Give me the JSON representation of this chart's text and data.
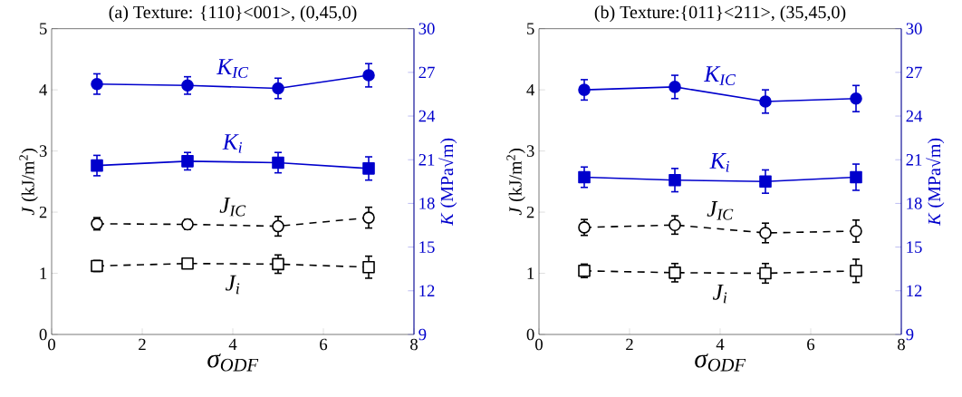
{
  "chart_data": [
    {
      "type": "line",
      "title": "(a) Texture: {110}<001>, (0,45,0)",
      "xlabel": "σ$_{ODF}$",
      "ylabel": "*J* (kJ/m$^{2}$)",
      "y2label": "*K* (MPa√m)",
      "x": [
        1,
        3,
        5,
        7
      ],
      "xlim": [
        0,
        8
      ],
      "xticks": [
        0,
        2,
        4,
        6,
        8
      ],
      "ylim": [
        0,
        5
      ],
      "yticks": [
        0,
        1,
        2,
        3,
        4,
        5
      ],
      "y2lim": [
        9,
        30
      ],
      "y2ticks": [
        9,
        12,
        15,
        18,
        21,
        24,
        27,
        30
      ],
      "series": [
        {
          "name": "K$_{IC}$",
          "color": "#0000cc",
          "axis": "y2",
          "marker": "circle",
          "line_style": "solid",
          "values": [
            26.2,
            26.1,
            25.9,
            26.8
          ],
          "errors": [
            0.7,
            0.6,
            0.7,
            0.8
          ]
        },
        {
          "name": "K$_{i}$",
          "color": "#0000cc",
          "axis": "y2",
          "marker": "square",
          "line_style": "solid",
          "values": [
            20.6,
            20.9,
            20.8,
            20.4
          ],
          "errors": [
            0.7,
            0.6,
            0.7,
            0.8
          ]
        },
        {
          "name": "J$_{IC}$",
          "color": "#000000",
          "axis": "y",
          "marker": "circle",
          "line_style": "dashed",
          "values": [
            1.81,
            1.8,
            1.77,
            1.91
          ],
          "errors": [
            0.1,
            0.08,
            0.16,
            0.17
          ]
        },
        {
          "name": "J$_{i}$",
          "color": "#000000",
          "axis": "y",
          "marker": "square",
          "line_style": "dashed",
          "values": [
            1.12,
            1.16,
            1.15,
            1.1
          ],
          "errors": [
            0.09,
            0.06,
            0.15,
            0.18
          ]
        }
      ]
    },
    {
      "type": "line",
      "title": "(b) Texture:{011}<211>, (35,45,0)",
      "xlabel": "σ$_{ODF}$",
      "ylabel": "*J* (kJ/m$^{2}$)",
      "y2label": "*K* (MPa√m)",
      "x": [
        1,
        3,
        5,
        7
      ],
      "xlim": [
        0,
        8
      ],
      "xticks": [
        0,
        2,
        4,
        6,
        8
      ],
      "ylim": [
        0,
        5
      ],
      "yticks": [
        0,
        1,
        2,
        3,
        4,
        5
      ],
      "y2lim": [
        9,
        30
      ],
      "y2ticks": [
        9,
        12,
        15,
        18,
        21,
        24,
        27,
        30
      ],
      "series": [
        {
          "name": "K$_{IC}$",
          "color": "#0000cc",
          "axis": "y2",
          "marker": "circle",
          "line_style": "solid",
          "values": [
            25.8,
            26.0,
            25.0,
            25.2
          ],
          "errors": [
            0.7,
            0.8,
            0.8,
            0.9
          ]
        },
        {
          "name": "K$_{i}$",
          "color": "#0000cc",
          "axis": "y2",
          "marker": "square",
          "line_style": "solid",
          "values": [
            19.8,
            19.6,
            19.5,
            19.8
          ],
          "errors": [
            0.7,
            0.8,
            0.8,
            0.9
          ]
        },
        {
          "name": "J$_{IC}$",
          "color": "#000000",
          "axis": "y",
          "marker": "circle",
          "line_style": "dashed",
          "values": [
            1.75,
            1.79,
            1.66,
            1.69
          ],
          "errors": [
            0.13,
            0.15,
            0.16,
            0.18
          ]
        },
        {
          "name": "J$_{i}$",
          "color": "#000000",
          "axis": "y",
          "marker": "square",
          "line_style": "dashed",
          "values": [
            1.04,
            1.01,
            1.0,
            1.04
          ],
          "errors": [
            0.11,
            0.15,
            0.16,
            0.19
          ]
        }
      ]
    }
  ]
}
